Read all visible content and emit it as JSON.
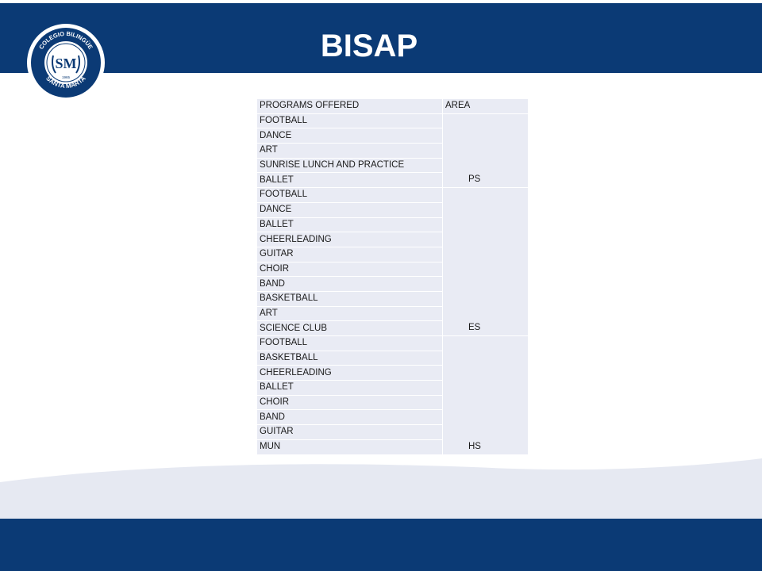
{
  "header": {
    "title": "BISAP"
  },
  "logo": {
    "top_text": "COLEGIO BILINGÜE",
    "bottom_text": "SANTA MARTA",
    "monogram": "SM",
    "year": "1965"
  },
  "table": {
    "columns": [
      "PROGRAMS OFFERED",
      "AREA"
    ],
    "groups": [
      {
        "area": "PS",
        "programs": [
          "FOOTBALL",
          "DANCE",
          "ART",
          "SUNRISE LUNCH AND PRACTICE",
          "BALLET"
        ]
      },
      {
        "area": "ES",
        "programs": [
          "FOOTBALL",
          "DANCE",
          "BALLET",
          "CHEERLEADING",
          "GUITAR",
          "CHOIR",
          "BAND",
          "BASKETBALL",
          "ART",
          "SCIENCE CLUB"
        ]
      },
      {
        "area": "HS",
        "programs": [
          "FOOTBALL",
          "BASKETBALL",
          "CHEERLEADING",
          "BALLET",
          "CHOIR",
          "BAND",
          "GUITAR",
          "MUN"
        ]
      }
    ]
  },
  "colors": {
    "header_blue": "#0b3a75",
    "table_cell": "#e9ebf4",
    "swoosh": "#e6e9f2"
  }
}
